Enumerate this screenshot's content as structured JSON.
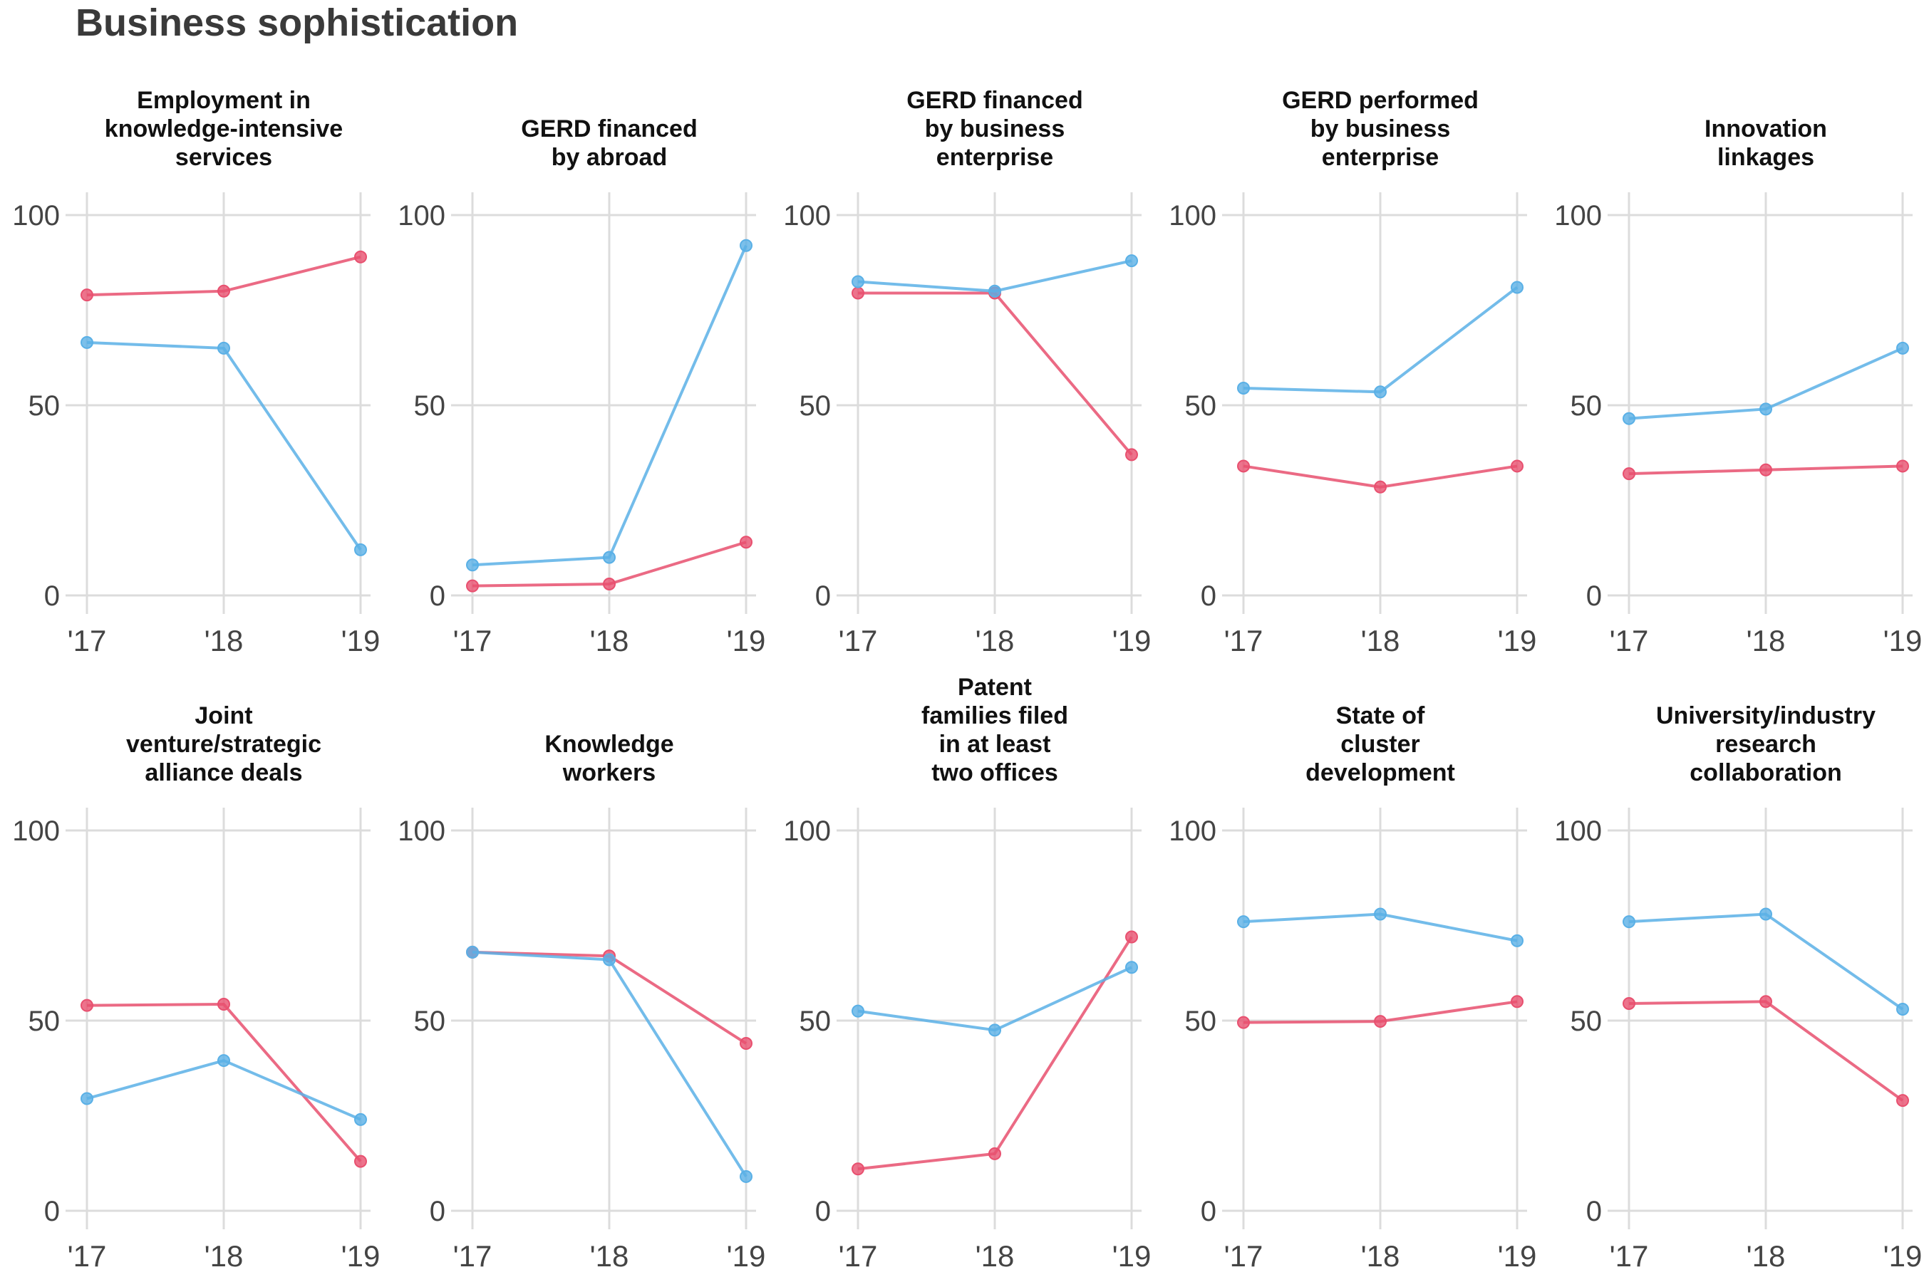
{
  "title": "Business sophistication",
  "colors": {
    "red": "#E8506F",
    "blue": "#5AB0E6",
    "grid": "#dcdcdc",
    "text": "#333333"
  },
  "chart_data": [
    {
      "type": "line",
      "title": "Employment in knowledge-intensive services",
      "title_lines": [
        "Employment in",
        "knowledge-intensive",
        "services"
      ],
      "x": [
        "'17",
        "'18",
        "'19"
      ],
      "ylim": [
        0,
        100
      ],
      "yticks": [
        0,
        50,
        100
      ],
      "grid": true,
      "series": [
        {
          "color": "red",
          "values": [
            79,
            80,
            89
          ]
        },
        {
          "color": "blue",
          "values": [
            66.5,
            65,
            12
          ]
        }
      ]
    },
    {
      "type": "line",
      "title": "GERD financed by abroad",
      "title_lines": [
        "GERD financed",
        "by abroad"
      ],
      "x": [
        "'17",
        "'18",
        "'19"
      ],
      "ylim": [
        0,
        100
      ],
      "yticks": [
        0,
        50,
        100
      ],
      "grid": true,
      "series": [
        {
          "color": "red",
          "values": [
            2.5,
            3,
            14
          ]
        },
        {
          "color": "blue",
          "values": [
            8,
            10,
            92
          ]
        }
      ]
    },
    {
      "type": "line",
      "title": "GERD financed by business enterprise",
      "title_lines": [
        "GERD financed",
        "by business",
        "enterprise"
      ],
      "x": [
        "'17",
        "'18",
        "'19"
      ],
      "ylim": [
        0,
        100
      ],
      "yticks": [
        0,
        50,
        100
      ],
      "grid": true,
      "series": [
        {
          "color": "red",
          "values": [
            79.5,
            79.5,
            37
          ]
        },
        {
          "color": "blue",
          "values": [
            82.5,
            80,
            88
          ]
        }
      ]
    },
    {
      "type": "line",
      "title": "GERD performed by business enterprise",
      "title_lines": [
        "GERD performed",
        "by business",
        "enterprise"
      ],
      "x": [
        "'17",
        "'18",
        "'19"
      ],
      "ylim": [
        0,
        100
      ],
      "yticks": [
        0,
        50,
        100
      ],
      "grid": true,
      "series": [
        {
          "color": "red",
          "values": [
            34,
            28.5,
            34
          ]
        },
        {
          "color": "blue",
          "values": [
            54.5,
            53.5,
            81
          ]
        }
      ]
    },
    {
      "type": "line",
      "title": "Innovation linkages",
      "title_lines": [
        "Innovation",
        "linkages"
      ],
      "x": [
        "'17",
        "'18",
        "'19"
      ],
      "ylim": [
        0,
        100
      ],
      "yticks": [
        0,
        50,
        100
      ],
      "grid": true,
      "series": [
        {
          "color": "red",
          "values": [
            32,
            33,
            34
          ]
        },
        {
          "color": "blue",
          "values": [
            46.5,
            49,
            65
          ]
        }
      ]
    },
    {
      "type": "line",
      "title": "Joint venture/strategic alliance deals",
      "title_lines": [
        "Joint",
        "venture/strategic",
        "alliance deals"
      ],
      "x": [
        "'17",
        "'18",
        "'19"
      ],
      "ylim": [
        0,
        100
      ],
      "yticks": [
        0,
        50,
        100
      ],
      "grid": true,
      "series": [
        {
          "color": "red",
          "values": [
            54,
            54.3,
            13
          ]
        },
        {
          "color": "blue",
          "values": [
            29.5,
            39.5,
            24
          ]
        }
      ]
    },
    {
      "type": "line",
      "title": "Knowledge workers",
      "title_lines": [
        "Knowledge",
        "workers"
      ],
      "x": [
        "'17",
        "'18",
        "'19"
      ],
      "ylim": [
        0,
        100
      ],
      "yticks": [
        0,
        50,
        100
      ],
      "grid": true,
      "series": [
        {
          "color": "red",
          "values": [
            68,
            67,
            44
          ]
        },
        {
          "color": "blue",
          "values": [
            68,
            66,
            9
          ]
        }
      ]
    },
    {
      "type": "line",
      "title": "Patent families filed in at least two offices",
      "title_lines": [
        "Patent",
        "families filed",
        "in at least",
        "two offices"
      ],
      "x": [
        "'17",
        "'18",
        "'19"
      ],
      "ylim": [
        0,
        100
      ],
      "yticks": [
        0,
        50,
        100
      ],
      "grid": true,
      "series": [
        {
          "color": "red",
          "values": [
            11,
            15,
            72
          ]
        },
        {
          "color": "blue",
          "values": [
            52.5,
            47.5,
            64
          ]
        }
      ]
    },
    {
      "type": "line",
      "title": "State of cluster development",
      "title_lines": [
        "State of",
        "cluster",
        "development"
      ],
      "x": [
        "'17",
        "'18",
        "'19"
      ],
      "ylim": [
        0,
        100
      ],
      "yticks": [
        0,
        50,
        100
      ],
      "grid": true,
      "series": [
        {
          "color": "red",
          "values": [
            49.5,
            49.8,
            55
          ]
        },
        {
          "color": "blue",
          "values": [
            76,
            78,
            71
          ]
        }
      ]
    },
    {
      "type": "line",
      "title": "University/industry research collaboration",
      "title_lines": [
        "University/industry",
        "research",
        "collaboration"
      ],
      "x": [
        "'17",
        "'18",
        "'19"
      ],
      "ylim": [
        0,
        100
      ],
      "yticks": [
        0,
        50,
        100
      ],
      "grid": true,
      "series": [
        {
          "color": "red",
          "values": [
            54.5,
            55,
            29
          ]
        },
        {
          "color": "blue",
          "values": [
            76,
            78,
            53
          ]
        }
      ]
    }
  ]
}
